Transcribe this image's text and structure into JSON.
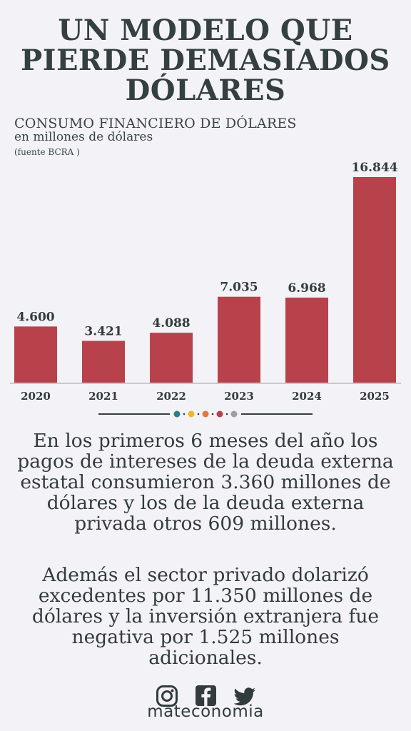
{
  "title_lines": [
    "UN MODELO QUE",
    "PIERDE DEMASIADOS",
    "DÓLARES"
  ],
  "chart_data": {
    "type": "bar",
    "title": "CONSUMO FINANCIERO DE DÓLARES",
    "subtitle": "en millones de dólares",
    "source": "(fuente BCRA )",
    "categories": [
      "2020",
      "2021",
      "2022",
      "2023",
      "2024",
      "2025"
    ],
    "values": [
      4600,
      3421,
      4088,
      7035,
      6968,
      16844
    ],
    "value_labels": [
      "4.600",
      "3.421",
      "4.088",
      "7.035",
      "6.968",
      "16.844"
    ],
    "bar_color": "#b8424b",
    "grid": false
  },
  "divider_colors": [
    "#2d7f86",
    "#e8b92b",
    "#e07a3a",
    "#b8424b",
    "#9f9f9f"
  ],
  "paragraphs": [
    "En los primeros 6 meses del año los pagos de intereses de la deuda externa estatal consumieron 3.360 millones de dólares y los de la deuda externa privada otros 609 millones.",
    "Además el sector privado dolarizó excedentes por 11.350 millones de dólares y la inversión extranjera fue negativa por 1.525 millones adicionales."
  ],
  "social_icons": [
    "instagram-icon",
    "facebook-icon",
    "twitter-icon"
  ],
  "brand": "mateconomia"
}
